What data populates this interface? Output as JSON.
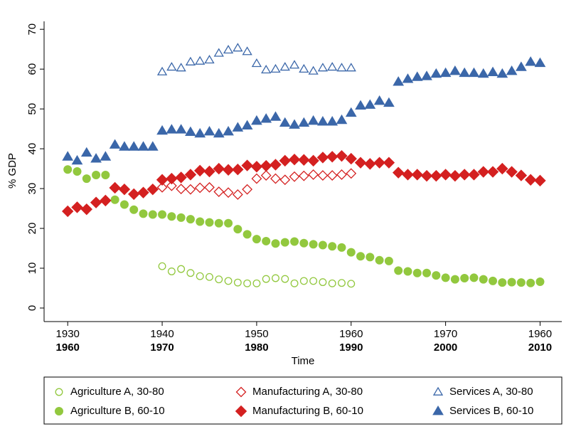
{
  "chart_data": {
    "type": "scatter",
    "y_label": "% GDP",
    "x_label": "Time",
    "xlim": [
      1957.5,
      2012.3
    ],
    "ylim": [
      -3.4,
      72
    ],
    "yticks": [
      0,
      10,
      20,
      30,
      40,
      50,
      60,
      70
    ],
    "xticks": [
      {
        "value": 1960,
        "label": "1930"
      },
      {
        "value": 1970,
        "label": "1940"
      },
      {
        "value": 1980,
        "label": "1950"
      },
      {
        "value": 1990,
        "label": "1960"
      },
      {
        "value": 2000,
        "label": "1970"
      },
      {
        "value": 2010,
        "label": "1960"
      }
    ],
    "xticks_bottom": [
      1960,
      1970,
      1980,
      1990,
      2000,
      2010
    ],
    "legend_position": "bottom",
    "series": [
      {
        "name": "Agriculture A, 30-80",
        "color": "#92c83e",
        "marker": "circle",
        "filled": false,
        "x": [
          1970,
          1971,
          1972,
          1973,
          1974,
          1975,
          1976,
          1977,
          1978,
          1979,
          1980,
          1981,
          1982,
          1983,
          1984,
          1985,
          1986,
          1987,
          1988,
          1989,
          1990
        ],
        "values": [
          10.5,
          9.2,
          9.8,
          8.8,
          8,
          7.8,
          7.2,
          6.8,
          6.4,
          6.2,
          6.2,
          7.3,
          7.5,
          7.3,
          6.2,
          6.8,
          6.8,
          6.5,
          6.2,
          6.3,
          6.1
        ]
      },
      {
        "name": "Manufacturing A, 30-80",
        "color": "#d42020",
        "marker": "diamond",
        "filled": false,
        "x": [
          1970,
          1971,
          1972,
          1973,
          1974,
          1975,
          1976,
          1977,
          1978,
          1979,
          1980,
          1981,
          1982,
          1983,
          1984,
          1985,
          1986,
          1987,
          1988,
          1989,
          1990
        ],
        "values": [
          30.3,
          30.7,
          29.9,
          29.8,
          30.2,
          30.3,
          29.2,
          29,
          28.5,
          29.8,
          32.5,
          33.3,
          32.5,
          32.2,
          33,
          33.2,
          33.5,
          33.3,
          33.3,
          33.5,
          33.8
        ]
      },
      {
        "name": "Services A, 30-80",
        "color": "#3b67a9",
        "marker": "triangle",
        "filled": false,
        "x": [
          1970,
          1971,
          1972,
          1973,
          1974,
          1975,
          1976,
          1977,
          1978,
          1979,
          1980,
          1981,
          1982,
          1983,
          1984,
          1985,
          1986,
          1987,
          1988,
          1989,
          1990
        ],
        "values": [
          59.3,
          60.5,
          60.3,
          61.8,
          62,
          62.3,
          64,
          64.8,
          65.3,
          64.4,
          61.4,
          59.8,
          60,
          60.5,
          61,
          60,
          59.5,
          60.3,
          60.5,
          60.3,
          60.3
        ]
      },
      {
        "name": "Agriculture B, 60-10",
        "color": "#92c83e",
        "marker": "circle",
        "filled": true,
        "x": [
          1960,
          1961,
          1962,
          1963,
          1964,
          1965,
          1966,
          1967,
          1968,
          1969,
          1970,
          1971,
          1972,
          1973,
          1974,
          1975,
          1976,
          1977,
          1978,
          1979,
          1980,
          1981,
          1982,
          1983,
          1984,
          1985,
          1986,
          1987,
          1988,
          1989,
          1990,
          1991,
          1992,
          1993,
          1994,
          1995,
          1996,
          1997,
          1998,
          1999,
          2000,
          2001,
          2002,
          2003,
          2004,
          2005,
          2006,
          2007,
          2008,
          2009,
          2010
        ],
        "values": [
          34.8,
          34.3,
          32.5,
          33.4,
          33.4,
          27.2,
          26,
          24.7,
          23.7,
          23.5,
          23.5,
          23,
          22.7,
          22.3,
          21.7,
          21.5,
          21.3,
          21.3,
          19.8,
          18.5,
          17.3,
          16.8,
          16.2,
          16.5,
          16.7,
          16.3,
          16,
          15.8,
          15.5,
          15.2,
          14,
          13,
          12.8,
          12,
          11.8,
          9.4,
          9.2,
          8.8,
          8.8,
          8.2,
          7.6,
          7.2,
          7.5,
          7.6,
          7.2,
          6.8,
          6.4,
          6.5,
          6.4,
          6.3,
          6.6
        ]
      },
      {
        "name": "Manufacturing B, 60-10",
        "color": "#d42020",
        "marker": "diamond",
        "filled": true,
        "x": [
          1960,
          1961,
          1962,
          1963,
          1964,
          1965,
          1966,
          1967,
          1968,
          1969,
          1970,
          1971,
          1972,
          1973,
          1974,
          1975,
          1976,
          1977,
          1978,
          1979,
          1980,
          1981,
          1982,
          1983,
          1984,
          1985,
          1986,
          1987,
          1988,
          1989,
          1990,
          1991,
          1992,
          1993,
          1994,
          1995,
          1996,
          1997,
          1998,
          1999,
          2000,
          2001,
          2002,
          2003,
          2004,
          2005,
          2006,
          2007,
          2008,
          2009,
          2010
        ],
        "values": [
          24.3,
          25.3,
          24.8,
          26.5,
          27,
          30.2,
          29.8,
          28.6,
          29,
          29.8,
          32.2,
          32.5,
          32.8,
          33.5,
          34.5,
          34.3,
          35,
          34.7,
          34.8,
          35.8,
          35.5,
          35.7,
          36,
          37,
          37.3,
          37.2,
          37,
          37.8,
          38,
          38.2,
          37.5,
          36.5,
          36.2,
          36.5,
          36.5,
          34,
          33.5,
          33.5,
          33.2,
          33.2,
          33.5,
          33.2,
          33.5,
          33.5,
          34.2,
          34.2,
          35,
          34.2,
          33.3,
          32.2,
          32
        ]
      },
      {
        "name": "Services B, 60-10",
        "color": "#3b67a9",
        "marker": "triangle",
        "filled": true,
        "x": [
          1960,
          1961,
          1962,
          1963,
          1964,
          1965,
          1966,
          1967,
          1968,
          1969,
          1970,
          1971,
          1972,
          1973,
          1974,
          1975,
          1976,
          1977,
          1978,
          1979,
          1980,
          1981,
          1982,
          1983,
          1984,
          1985,
          1986,
          1987,
          1988,
          1989,
          1990,
          1991,
          1992,
          1993,
          1994,
          1995,
          1996,
          1997,
          1998,
          1999,
          2000,
          2001,
          2002,
          2003,
          2004,
          2005,
          2006,
          2007,
          2008,
          2009,
          2010
        ],
        "values": [
          38,
          37,
          39,
          37.5,
          38,
          41,
          40.5,
          40.5,
          40.5,
          40.5,
          44.5,
          44.8,
          44.8,
          44.2,
          43.8,
          44.3,
          43.8,
          44.3,
          45.3,
          45.8,
          47,
          47.5,
          48,
          46.5,
          46,
          46.5,
          47,
          46.8,
          46.8,
          47.2,
          49,
          50.8,
          51,
          52,
          51.5,
          56.8,
          57.5,
          58,
          58.2,
          58.8,
          59,
          59.5,
          59,
          59,
          58.8,
          59.2,
          58.8,
          59.5,
          60.5,
          61.8,
          61.5
        ]
      }
    ]
  }
}
